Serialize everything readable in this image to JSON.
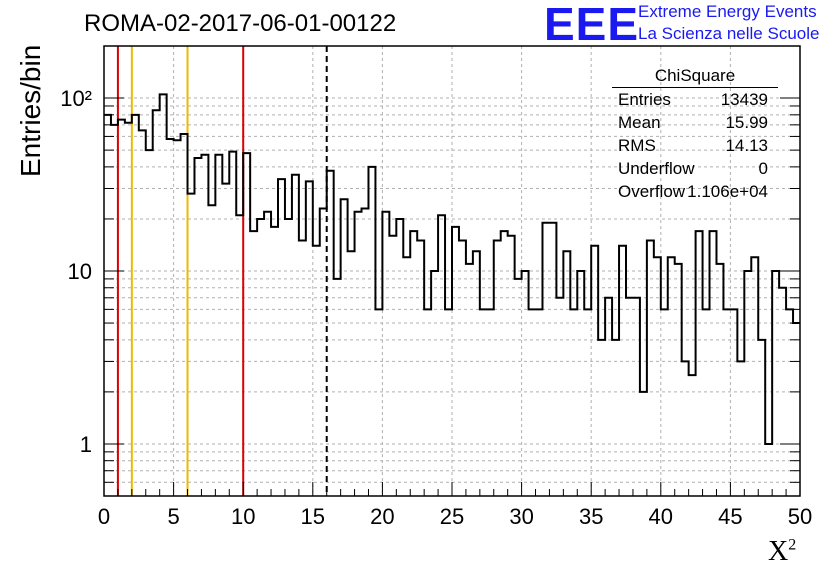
{
  "title": "ROMA-02-2017-06-01-00122",
  "logo": {
    "mark": "EEE",
    "line1": "Extreme Energy Events",
    "line2": "La Scienza nelle Scuole",
    "color": "#1a1af0"
  },
  "stats": {
    "name": "ChiSquare",
    "rows": [
      {
        "key": "Entries",
        "value": "13439"
      },
      {
        "key": "Mean",
        "value": "15.99"
      },
      {
        "key": "RMS",
        "value": "14.13"
      },
      {
        "key": "Underflow",
        "value": "0"
      },
      {
        "key": "Overflow",
        "value": "1.106e+04"
      }
    ]
  },
  "chart_data": {
    "type": "histogram",
    "title": "ROMA-02-2017-06-01-00122",
    "xlabel": "X",
    "xlabel_superscript": "2",
    "ylabel": "Entries/bin",
    "x_range": [
      0,
      50
    ],
    "y_range": [
      0.5,
      200
    ],
    "y_scale": "log",
    "bin_width": 0.5,
    "x_ticks": [
      0,
      5,
      10,
      15,
      20,
      25,
      30,
      35,
      40,
      45,
      50
    ],
    "y_tick_labels": [
      "1",
      "10",
      "10²"
    ],
    "grid": true,
    "bin_counts": [
      80,
      70,
      75,
      72,
      80,
      65,
      50,
      85,
      105,
      58,
      57,
      62,
      28,
      45,
      47,
      24,
      47,
      32,
      49,
      21,
      48,
      17,
      20,
      22,
      18,
      34,
      20,
      36,
      15,
      33,
      14,
      23,
      38,
      9,
      26,
      13,
      22,
      23,
      40,
      6,
      22,
      16,
      20,
      12,
      17,
      15,
      6,
      10,
      21,
      6,
      18,
      15,
      11,
      13,
      6,
      6,
      15,
      17,
      16,
      9,
      10,
      6,
      6,
      19,
      19,
      7,
      13,
      6,
      10,
      6,
      14,
      4,
      7,
      4,
      14,
      7,
      7,
      2,
      15,
      12,
      6,
      12,
      11,
      3,
      2.5,
      17,
      6,
      17,
      11,
      6,
      6,
      3,
      10,
      12,
      4,
      1,
      10,
      8,
      6,
      5
    ],
    "vertical_lines": [
      {
        "x": 1,
        "color": "#dd0000",
        "style": "solid"
      },
      {
        "x": 2,
        "color": "#f0b800",
        "style": "solid"
      },
      {
        "x": 6,
        "color": "#f0b800",
        "style": "solid"
      },
      {
        "x": 10,
        "color": "#dd0000",
        "style": "solid"
      },
      {
        "x": 16,
        "color": "#000000",
        "style": "dashed"
      }
    ],
    "legend": "top-right stats box"
  }
}
